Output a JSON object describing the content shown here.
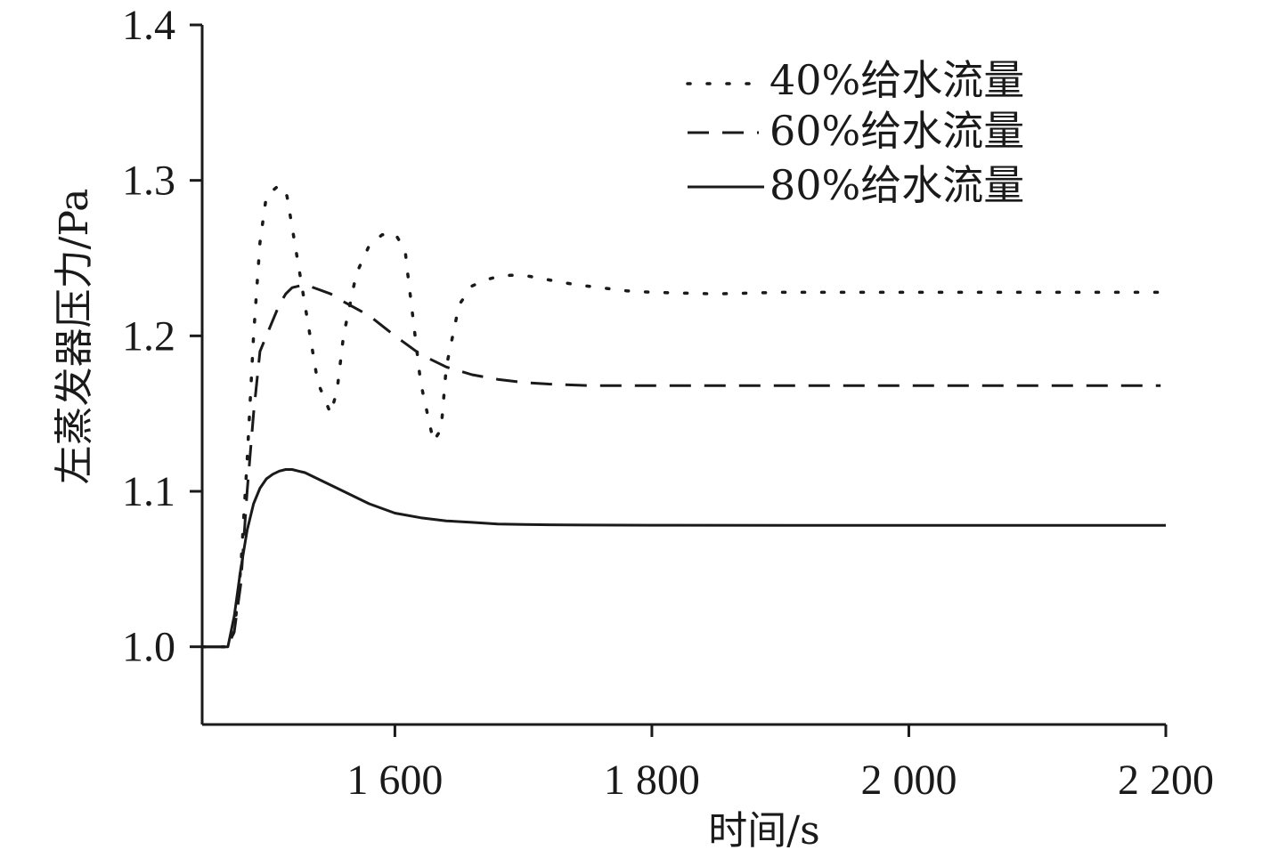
{
  "chart_data": {
    "type": "line",
    "title": "",
    "xlabel": "时间/s",
    "ylabel": "左蒸发器压力/Pa",
    "xlim": [
      1450,
      2200
    ],
    "ylim": [
      0.95,
      1.4
    ],
    "xticks": [
      1600,
      1800,
      2000,
      2200
    ],
    "xtick_labels": [
      "1 600",
      "1 800",
      "2 000",
      "2 200"
    ],
    "yticks": [
      1.0,
      1.1,
      1.2,
      1.3,
      1.4
    ],
    "ytick_labels": [
      "1.0",
      "1.1",
      "1.2",
      "1.3",
      "1.4"
    ],
    "grid": false,
    "legend_position": "top-right",
    "series": [
      {
        "name": "40%给水流量",
        "style": "dotted",
        "x": [
          1450,
          1470,
          1475,
          1480,
          1485,
          1490,
          1495,
          1500,
          1510,
          1516,
          1520,
          1530,
          1540,
          1550,
          1555,
          1560,
          1570,
          1580,
          1590,
          1600,
          1608,
          1610,
          1620,
          1630,
          1636,
          1640,
          1650,
          1660,
          1670,
          1680,
          1690,
          1700,
          1720,
          1740,
          1760,
          1780,
          1800,
          1850,
          1900,
          1950,
          2000,
          2050,
          2100,
          2150,
          2196
        ],
        "y": [
          1.0,
          1.0,
          1.01,
          1.05,
          1.12,
          1.2,
          1.26,
          1.29,
          1.297,
          1.29,
          1.27,
          1.22,
          1.17,
          1.15,
          1.165,
          1.2,
          1.24,
          1.258,
          1.265,
          1.266,
          1.255,
          1.24,
          1.17,
          1.132,
          1.14,
          1.18,
          1.22,
          1.232,
          1.236,
          1.238,
          1.239,
          1.239,
          1.236,
          1.233,
          1.231,
          1.229,
          1.228,
          1.227,
          1.228,
          1.228,
          1.228,
          1.228,
          1.228,
          1.228,
          1.228
        ]
      },
      {
        "name": "60%给水流量",
        "style": "dashed",
        "x": [
          1450,
          1470,
          1475,
          1480,
          1485,
          1490,
          1495,
          1500,
          1505,
          1510,
          1515,
          1520,
          1530,
          1540,
          1550,
          1560,
          1580,
          1600,
          1620,
          1640,
          1660,
          1680,
          1700,
          1720,
          1750,
          1800,
          1850,
          1900,
          2000,
          2100,
          2196
        ],
        "y": [
          1.0,
          1.0,
          1.01,
          1.04,
          1.1,
          1.15,
          1.19,
          1.2,
          1.21,
          1.22,
          1.227,
          1.231,
          1.233,
          1.23,
          1.227,
          1.222,
          1.213,
          1.2,
          1.188,
          1.18,
          1.175,
          1.172,
          1.17,
          1.169,
          1.168,
          1.168,
          1.168,
          1.168,
          1.168,
          1.168,
          1.168
        ]
      },
      {
        "name": "80%给水流量",
        "style": "solid",
        "x": [
          1450,
          1470,
          1475,
          1480,
          1485,
          1490,
          1495,
          1500,
          1505,
          1510,
          1515,
          1520,
          1525,
          1530,
          1540,
          1550,
          1560,
          1570,
          1580,
          1600,
          1620,
          1640,
          1660,
          1680,
          1700,
          1720,
          1750,
          1800,
          1900,
          2000,
          2100,
          2200
        ],
        "y": [
          1.0,
          1.0,
          1.02,
          1.05,
          1.075,
          1.092,
          1.102,
          1.108,
          1.111,
          1.113,
          1.114,
          1.114,
          1.113,
          1.112,
          1.108,
          1.104,
          1.1,
          1.096,
          1.092,
          1.086,
          1.083,
          1.081,
          1.08,
          1.079,
          1.0787,
          1.0785,
          1.0783,
          1.0782,
          1.0781,
          1.0781,
          1.0781,
          1.0781
        ]
      }
    ]
  }
}
